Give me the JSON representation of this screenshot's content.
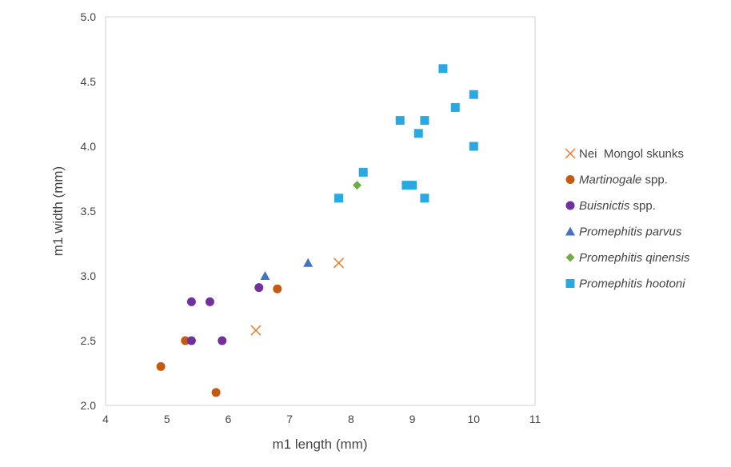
{
  "chart_data": {
    "type": "scatter",
    "title": "",
    "xlabel": "m1 length (mm)",
    "ylabel": "m1 width (mm)",
    "xlim": [
      4,
      11
    ],
    "ylim": [
      2.0,
      5.0
    ],
    "xticks": [
      "4",
      "5",
      "6",
      "7",
      "8",
      "9",
      "10",
      "11"
    ],
    "yticks": [
      "2.0",
      "2.5",
      "3.0",
      "3.5",
      "4.0",
      "4.5",
      "5.0"
    ],
    "grid": false,
    "legend_position": "right",
    "series": [
      {
        "name": "Nei  Mongol skunks",
        "italic": "",
        "suffix": "",
        "label": "Nei  Mongol skunks",
        "marker": "x",
        "color": "#ED7D31",
        "points": [
          [
            6.45,
            2.58
          ],
          [
            7.8,
            3.1
          ]
        ]
      },
      {
        "name": "Martinogale spp.",
        "italic": "Martinogale",
        "suffix": " spp.",
        "marker": "circle",
        "color": "#C55A11",
        "points": [
          [
            4.9,
            2.3
          ],
          [
            5.3,
            2.5
          ],
          [
            5.8,
            2.1
          ],
          [
            6.8,
            2.9
          ]
        ]
      },
      {
        "name": "Buisnictis spp.",
        "italic": "Buisnictis",
        "suffix": " spp.",
        "marker": "circle",
        "color": "#7030A0",
        "points": [
          [
            5.4,
            2.8
          ],
          [
            5.7,
            2.8
          ],
          [
            5.4,
            2.5
          ],
          [
            5.9,
            2.5
          ],
          [
            6.5,
            2.91
          ]
        ]
      },
      {
        "name": "Promephitis parvus",
        "italic": "Promephitis parvus",
        "suffix": "",
        "marker": "triangle",
        "color": "#4472C4",
        "points": [
          [
            6.6,
            3.0
          ],
          [
            7.3,
            3.1
          ]
        ]
      },
      {
        "name": "Promephitis qinensis",
        "italic": "Promephitis qinensis",
        "suffix": "",
        "marker": "diamond",
        "color": "#70AD47",
        "points": [
          [
            8.1,
            3.7
          ]
        ]
      },
      {
        "name": "Promephitis hootoni",
        "italic": "Promephitis hootoni",
        "suffix": "",
        "marker": "square",
        "color": "#29A9E1",
        "points": [
          [
            7.8,
            3.6
          ],
          [
            8.2,
            3.8
          ],
          [
            8.8,
            4.2
          ],
          [
            9.2,
            4.2
          ],
          [
            9.1,
            4.1
          ],
          [
            9.5,
            4.6
          ],
          [
            9.7,
            4.3
          ],
          [
            10.0,
            4.4
          ],
          [
            10.0,
            4.0
          ],
          [
            8.9,
            3.7
          ],
          [
            9.0,
            3.7
          ],
          [
            9.2,
            3.6
          ]
        ]
      }
    ]
  }
}
